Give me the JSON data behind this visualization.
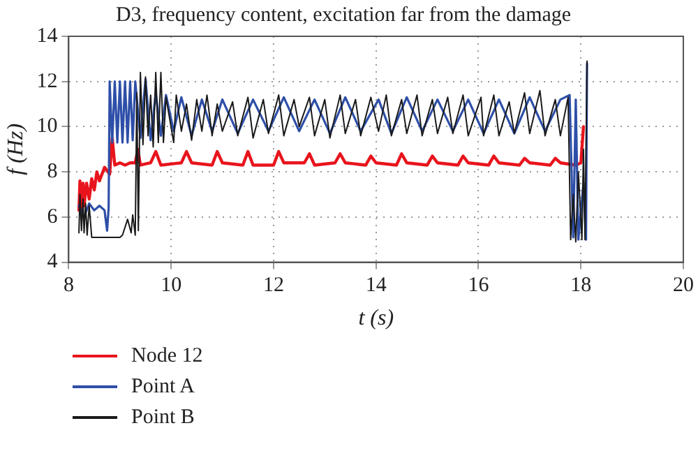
{
  "chart_data": {
    "type": "line",
    "title": "D3, frequency content, excitation far from the damage",
    "xlabel": "t (s)",
    "ylabel": "f (Hz)",
    "xlim": [
      8,
      20
    ],
    "xticks": [
      8,
      10,
      12,
      14,
      16,
      18,
      20
    ],
    "ylim": [
      4,
      14
    ],
    "yticks": [
      4,
      6,
      8,
      10,
      12,
      14
    ],
    "grid": true,
    "legend": "bottom",
    "marker": "none",
    "line_style": "solid",
    "series": [
      {
        "name": "Node 12",
        "color": "#e8141c",
        "x": [
          8.2,
          8.22,
          8.25,
          8.28,
          8.3,
          8.35,
          8.4,
          8.45,
          8.5,
          8.55,
          8.6,
          8.7,
          8.8,
          8.85,
          8.9,
          9.0,
          9.1,
          9.2,
          9.3,
          9.35,
          9.4,
          9.6,
          9.7,
          9.8,
          10.2,
          10.3,
          10.4,
          10.8,
          10.9,
          11.0,
          11.4,
          11.5,
          11.6,
          12.0,
          12.1,
          12.2,
          12.6,
          12.7,
          12.8,
          13.2,
          13.3,
          13.4,
          13.8,
          13.9,
          14.0,
          14.4,
          14.5,
          14.6,
          15.0,
          15.1,
          15.2,
          15.6,
          15.7,
          15.8,
          16.2,
          16.3,
          16.4,
          16.8,
          16.9,
          17.0,
          17.4,
          17.5,
          17.6,
          17.9,
          18.0,
          18.05
        ],
        "values": [
          6.3,
          7.6,
          6.2,
          7.5,
          6.5,
          7.5,
          6.8,
          7.7,
          7.2,
          8.0,
          7.6,
          8.2,
          7.9,
          9.5,
          8.3,
          8.4,
          8.3,
          8.4,
          8.4,
          9.0,
          8.3,
          8.4,
          8.9,
          8.3,
          8.4,
          8.9,
          8.4,
          8.3,
          8.9,
          8.4,
          8.3,
          8.9,
          8.3,
          8.3,
          8.9,
          8.4,
          8.4,
          8.8,
          8.3,
          8.4,
          8.8,
          8.4,
          8.3,
          8.7,
          8.4,
          8.3,
          8.8,
          8.4,
          8.3,
          8.7,
          8.4,
          8.3,
          8.7,
          8.4,
          8.3,
          8.7,
          8.4,
          8.3,
          8.6,
          8.4,
          8.3,
          8.6,
          8.4,
          8.3,
          8.4,
          10.0
        ]
      },
      {
        "name": "Point A",
        "color": "#2e4fa8",
        "x": [
          8.2,
          8.3,
          8.4,
          8.5,
          8.6,
          8.7,
          8.75,
          8.78,
          8.8,
          8.85,
          8.9,
          8.95,
          9.0,
          9.05,
          9.1,
          9.15,
          9.2,
          9.25,
          9.3,
          9.4,
          9.5,
          9.6,
          9.7,
          9.8,
          9.9,
          10.05,
          10.2,
          10.4,
          10.6,
          10.8,
          11.0,
          11.3,
          11.6,
          11.9,
          12.2,
          12.5,
          12.8,
          13.1,
          13.4,
          13.7,
          14.05,
          14.3,
          14.6,
          14.9,
          15.2,
          15.5,
          15.8,
          16.1,
          16.4,
          16.7,
          17.0,
          17.3,
          17.6,
          17.78,
          17.85,
          17.9,
          17.95,
          18.05,
          18.1,
          18.12
        ],
        "values": [
          6.5,
          6.0,
          6.6,
          6.3,
          6.5,
          6.3,
          5.4,
          6.4,
          12.0,
          9.3,
          12.0,
          9.3,
          12.0,
          9.3,
          12.0,
          9.3,
          12.0,
          9.4,
          12.0,
          9.5,
          12.1,
          9.4,
          11.5,
          9.6,
          11.4,
          9.8,
          11.3,
          9.6,
          11.2,
          9.8,
          11.2,
          9.7,
          11.2,
          9.8,
          11.3,
          9.8,
          11.2,
          9.7,
          11.3,
          9.8,
          11.2,
          9.7,
          11.3,
          9.8,
          11.2,
          9.8,
          11.2,
          9.7,
          11.2,
          9.7,
          11.3,
          9.8,
          11.2,
          11.4,
          5.1,
          11.2,
          5.0,
          7.5,
          5.0,
          12.8
        ]
      },
      {
        "name": "Point B",
        "color": "#1a1a1a",
        "x": [
          8.2,
          8.22,
          8.25,
          8.28,
          8.3,
          8.33,
          8.36,
          8.4,
          8.45,
          8.6,
          8.8,
          9.0,
          9.05,
          9.15,
          9.22,
          9.25,
          9.3,
          9.33,
          9.36,
          9.4,
          9.45,
          9.5,
          9.55,
          9.6,
          9.65,
          9.7,
          9.75,
          9.8,
          9.85,
          9.9,
          10.05,
          10.1,
          10.2,
          10.3,
          10.4,
          10.5,
          10.6,
          10.7,
          10.8,
          10.9,
          11.0,
          11.2,
          11.3,
          11.5,
          11.6,
          11.8,
          11.9,
          12.1,
          12.2,
          12.4,
          12.5,
          12.7,
          12.8,
          13.0,
          13.1,
          13.3,
          13.4,
          13.6,
          13.7,
          13.9,
          14.05,
          14.2,
          14.3,
          14.5,
          14.6,
          14.8,
          14.9,
          15.1,
          15.2,
          15.4,
          15.5,
          15.7,
          15.8,
          16.05,
          16.1,
          16.3,
          16.4,
          16.6,
          16.7,
          16.9,
          17.0,
          17.2,
          17.3,
          17.5,
          17.6,
          17.75,
          17.8,
          17.85,
          17.9,
          17.95,
          18.02,
          18.05,
          18.08,
          18.12
        ],
        "values": [
          5.3,
          7.0,
          5.4,
          6.8,
          5.3,
          6.6,
          5.2,
          6.5,
          5.1,
          5.1,
          5.1,
          5.1,
          5.2,
          5.9,
          5.3,
          6.1,
          5.2,
          11.5,
          5.4,
          12.4,
          9.2,
          12.2,
          9.6,
          11.4,
          9.1,
          12.4,
          9.3,
          12.4,
          9.3,
          11.3,
          9.3,
          11.4,
          9.8,
          11.0,
          9.4,
          11.2,
          9.8,
          11.4,
          9.6,
          11.0,
          9.8,
          11.1,
          9.6,
          11.3,
          9.5,
          11.2,
          9.7,
          11.4,
          9.6,
          11.2,
          10.0,
          11.3,
          9.6,
          11.2,
          9.5,
          11.4,
          9.7,
          11.2,
          9.6,
          11.3,
          9.8,
          11.4,
          9.6,
          11.2,
          9.7,
          11.4,
          9.6,
          11.2,
          9.7,
          11.3,
          9.7,
          11.4,
          9.6,
          11.3,
          9.6,
          11.4,
          9.6,
          11.1,
          9.7,
          11.5,
          9.7,
          11.6,
          9.6,
          11.2,
          9.6,
          11.3,
          5.0,
          7.0,
          4.9,
          8.0,
          5.0,
          9.0,
          5.0,
          12.9
        ]
      }
    ]
  }
}
